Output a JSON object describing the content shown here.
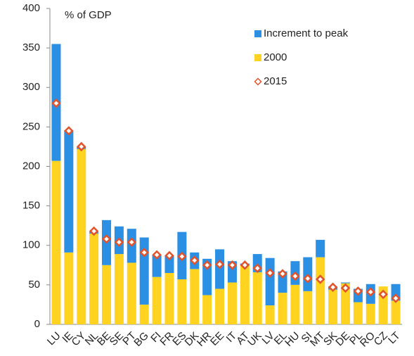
{
  "chart_data": {
    "type": "bar",
    "y_label": "% of GDP",
    "categories": [
      "LU",
      "IE",
      "CY",
      "NL",
      "BE",
      "SE",
      "PT",
      "BG",
      "FI",
      "FR",
      "ES",
      "DK",
      "HR",
      "EE",
      "IT",
      "AT",
      "UK",
      "LV",
      "EL",
      "HU",
      "SI",
      "MT",
      "SK",
      "DE",
      "PL",
      "RO",
      "CZ",
      "LT"
    ],
    "series": [
      {
        "name": "Increment to peak",
        "color": "#2b8fe4",
        "values": [
          148,
          155,
          3,
          2,
          57,
          35,
          43,
          85,
          28,
          22,
          60,
          21,
          46,
          50,
          27,
          2,
          23,
          60,
          27,
          30,
          43,
          22,
          4,
          1,
          17,
          25,
          0,
          21
        ]
      },
      {
        "name": "2000",
        "color": "#ffd320",
        "values": [
          207,
          91,
          222,
          115,
          75,
          89,
          78,
          25,
          60,
          65,
          57,
          70,
          37,
          45,
          53,
          75,
          66,
          24,
          40,
          50,
          42,
          85,
          44,
          52,
          28,
          26,
          48,
          30
        ]
      },
      {
        "name": "2015",
        "color": "#e2532b",
        "marker": "diamond",
        "values": [
          280,
          245,
          225,
          118,
          108,
          104,
          104,
          91,
          88,
          87,
          86,
          81,
          75,
          76,
          75,
          75,
          71,
          65,
          64,
          61,
          58,
          57,
          47,
          46,
          42,
          41,
          38,
          33
        ]
      }
    ],
    "ylim": [
      0,
      400
    ],
    "yticks": [
      0,
      50,
      100,
      150,
      200,
      250,
      300,
      350,
      400
    ],
    "grid": false
  }
}
